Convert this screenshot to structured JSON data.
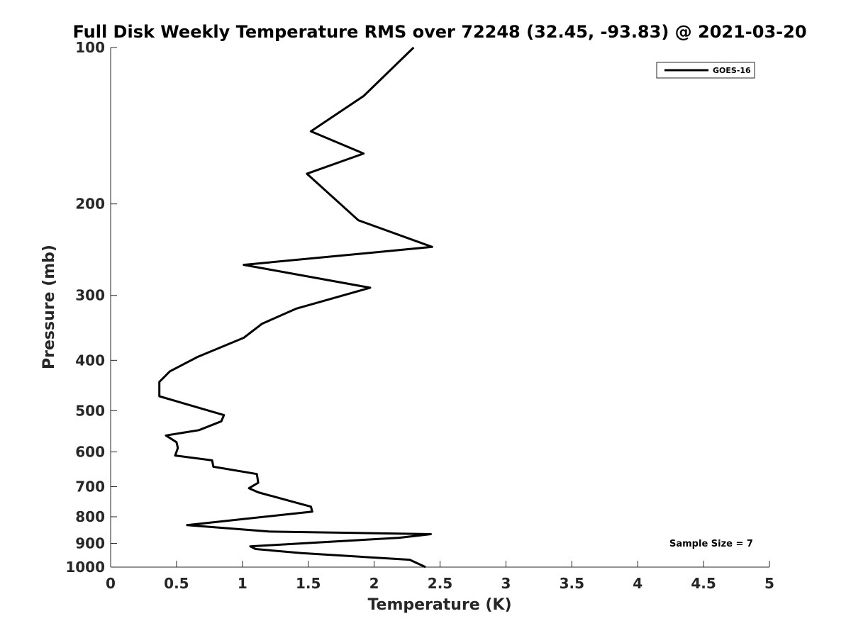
{
  "chart_data": {
    "type": "line",
    "title": "Full Disk Weekly Temperature RMS over 72248 (32.45, -93.83) @ 2021-03-20",
    "xlabel": "Temperature (K)",
    "ylabel": "Pressure (mb)",
    "xlim": [
      0,
      5
    ],
    "ylim": [
      100,
      1000
    ],
    "y_scale": "log",
    "y_reversed": true,
    "x_ticks": [
      "0",
      "0.5",
      "1",
      "1.5",
      "2",
      "2.5",
      "3",
      "3.5",
      "4",
      "4.5",
      "5"
    ],
    "y_ticks": [
      "100",
      "200",
      "300",
      "400",
      "500",
      "600",
      "700",
      "800",
      "900",
      "1000"
    ],
    "grid": false,
    "legend_position": "top-right",
    "series": [
      {
        "name": "GOES-16",
        "color": "#000000",
        "points": [
          [
            2.3,
            100
          ],
          [
            1.92,
            124
          ],
          [
            1.52,
            145
          ],
          [
            1.92,
            160
          ],
          [
            1.49,
            175
          ],
          [
            1.88,
            215
          ],
          [
            2.44,
            242
          ],
          [
            1.01,
            262
          ],
          [
            1.97,
            290
          ],
          [
            1.41,
            318
          ],
          [
            1.15,
            340
          ],
          [
            1.01,
            362
          ],
          [
            0.66,
            394
          ],
          [
            0.45,
            420
          ],
          [
            0.37,
            440
          ],
          [
            0.37,
            469
          ],
          [
            0.86,
            510
          ],
          [
            0.84,
            524
          ],
          [
            0.67,
            545
          ],
          [
            0.42,
            558
          ],
          [
            0.5,
            575
          ],
          [
            0.51,
            590
          ],
          [
            0.49,
            610
          ],
          [
            0.77,
            623
          ],
          [
            0.78,
            641
          ],
          [
            1.11,
            662
          ],
          [
            1.12,
            688
          ],
          [
            1.05,
            705
          ],
          [
            1.12,
            718
          ],
          [
            1.42,
            753
          ],
          [
            1.52,
            765
          ],
          [
            1.53,
            782
          ],
          [
            0.58,
            830
          ],
          [
            1.2,
            854
          ],
          [
            2.43,
            864
          ],
          [
            2.19,
            878
          ],
          [
            1.06,
            912
          ],
          [
            1.1,
            923
          ],
          [
            1.45,
            940
          ],
          [
            2.27,
            968
          ],
          [
            2.39,
            1000
          ]
        ]
      }
    ],
    "annotations": [
      "Sample Size = 7"
    ]
  }
}
